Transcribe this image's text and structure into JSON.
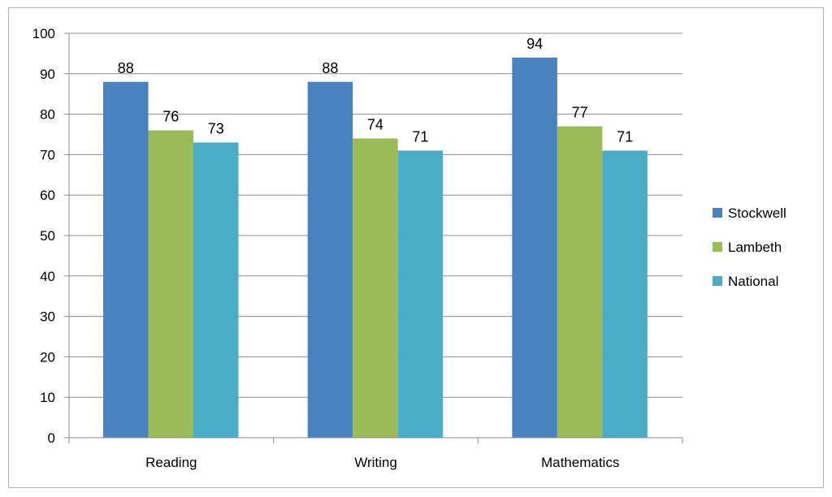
{
  "chart_data": {
    "type": "bar",
    "categories": [
      "Reading",
      "Writing",
      "Mathematics"
    ],
    "series": [
      {
        "name": "Stockwell",
        "color": "#4a82bd",
        "values": [
          88,
          88,
          94
        ]
      },
      {
        "name": "Lambeth",
        "color": "#9bbb59",
        "values": [
          76,
          74,
          77
        ]
      },
      {
        "name": "National",
        "color": "#4bacc6",
        "values": [
          73,
          71,
          71
        ]
      }
    ],
    "ylim": [
      0,
      100
    ],
    "yticks": [
      0,
      10,
      20,
      30,
      40,
      50,
      60,
      70,
      80,
      90,
      100
    ],
    "grid": true,
    "legend_position": "right",
    "data_labels": true
  }
}
